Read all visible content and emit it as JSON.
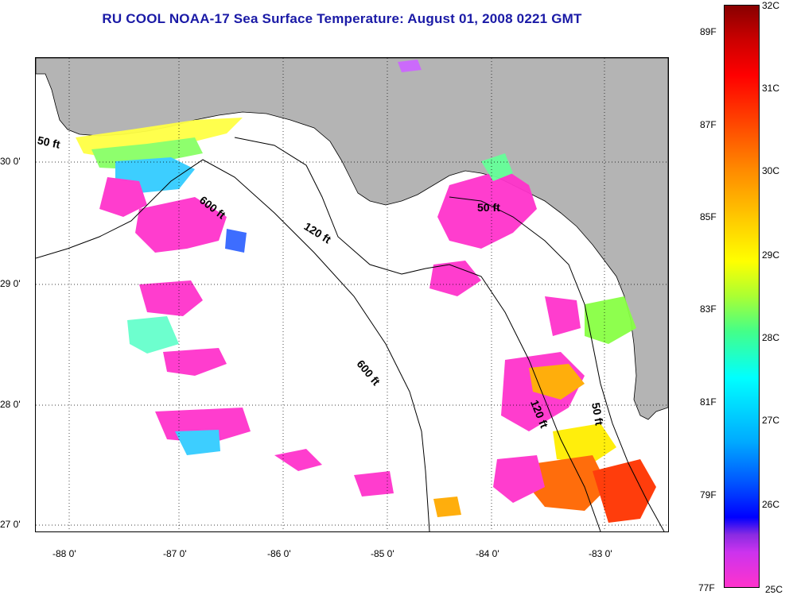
{
  "title": "RU COOL  NOAA-17  Sea Surface Temperature:  August 01, 2008 0221 GMT",
  "map": {
    "land_color": "#b4b4b4",
    "water_color": "#ffffff",
    "lon_labels": [
      "-88 0'",
      "-87 0'",
      "-86 0'",
      "-85 0'",
      "-84 0'",
      "-83 0'"
    ],
    "lat_labels": [
      "30 0'",
      "29 0'",
      "28 0'",
      "27 0'"
    ],
    "contour_labels": {
      "c50_west": "50 ft",
      "c600_north": "600 ft",
      "c120": "120 ft",
      "c50_east": "50 ft",
      "c600_south": "600 ft",
      "c120_south": "120 ft",
      "c50_south": "50 ft"
    }
  },
  "colorbar": {
    "celsius": [
      "32C",
      "31C",
      "30C",
      "29C",
      "28C",
      "27C",
      "26C",
      "25C"
    ],
    "fahrenheit": [
      "89F",
      "87F",
      "85F",
      "83F",
      "81F",
      "79F",
      "77F"
    ],
    "range_c": [
      25,
      32
    ],
    "colors": {
      "min": "#ff33cc",
      "low": "#0000ff",
      "mid_low": "#00ffff",
      "mid": "#ffff00",
      "high": "#ff0000",
      "max": "#880000"
    }
  }
}
